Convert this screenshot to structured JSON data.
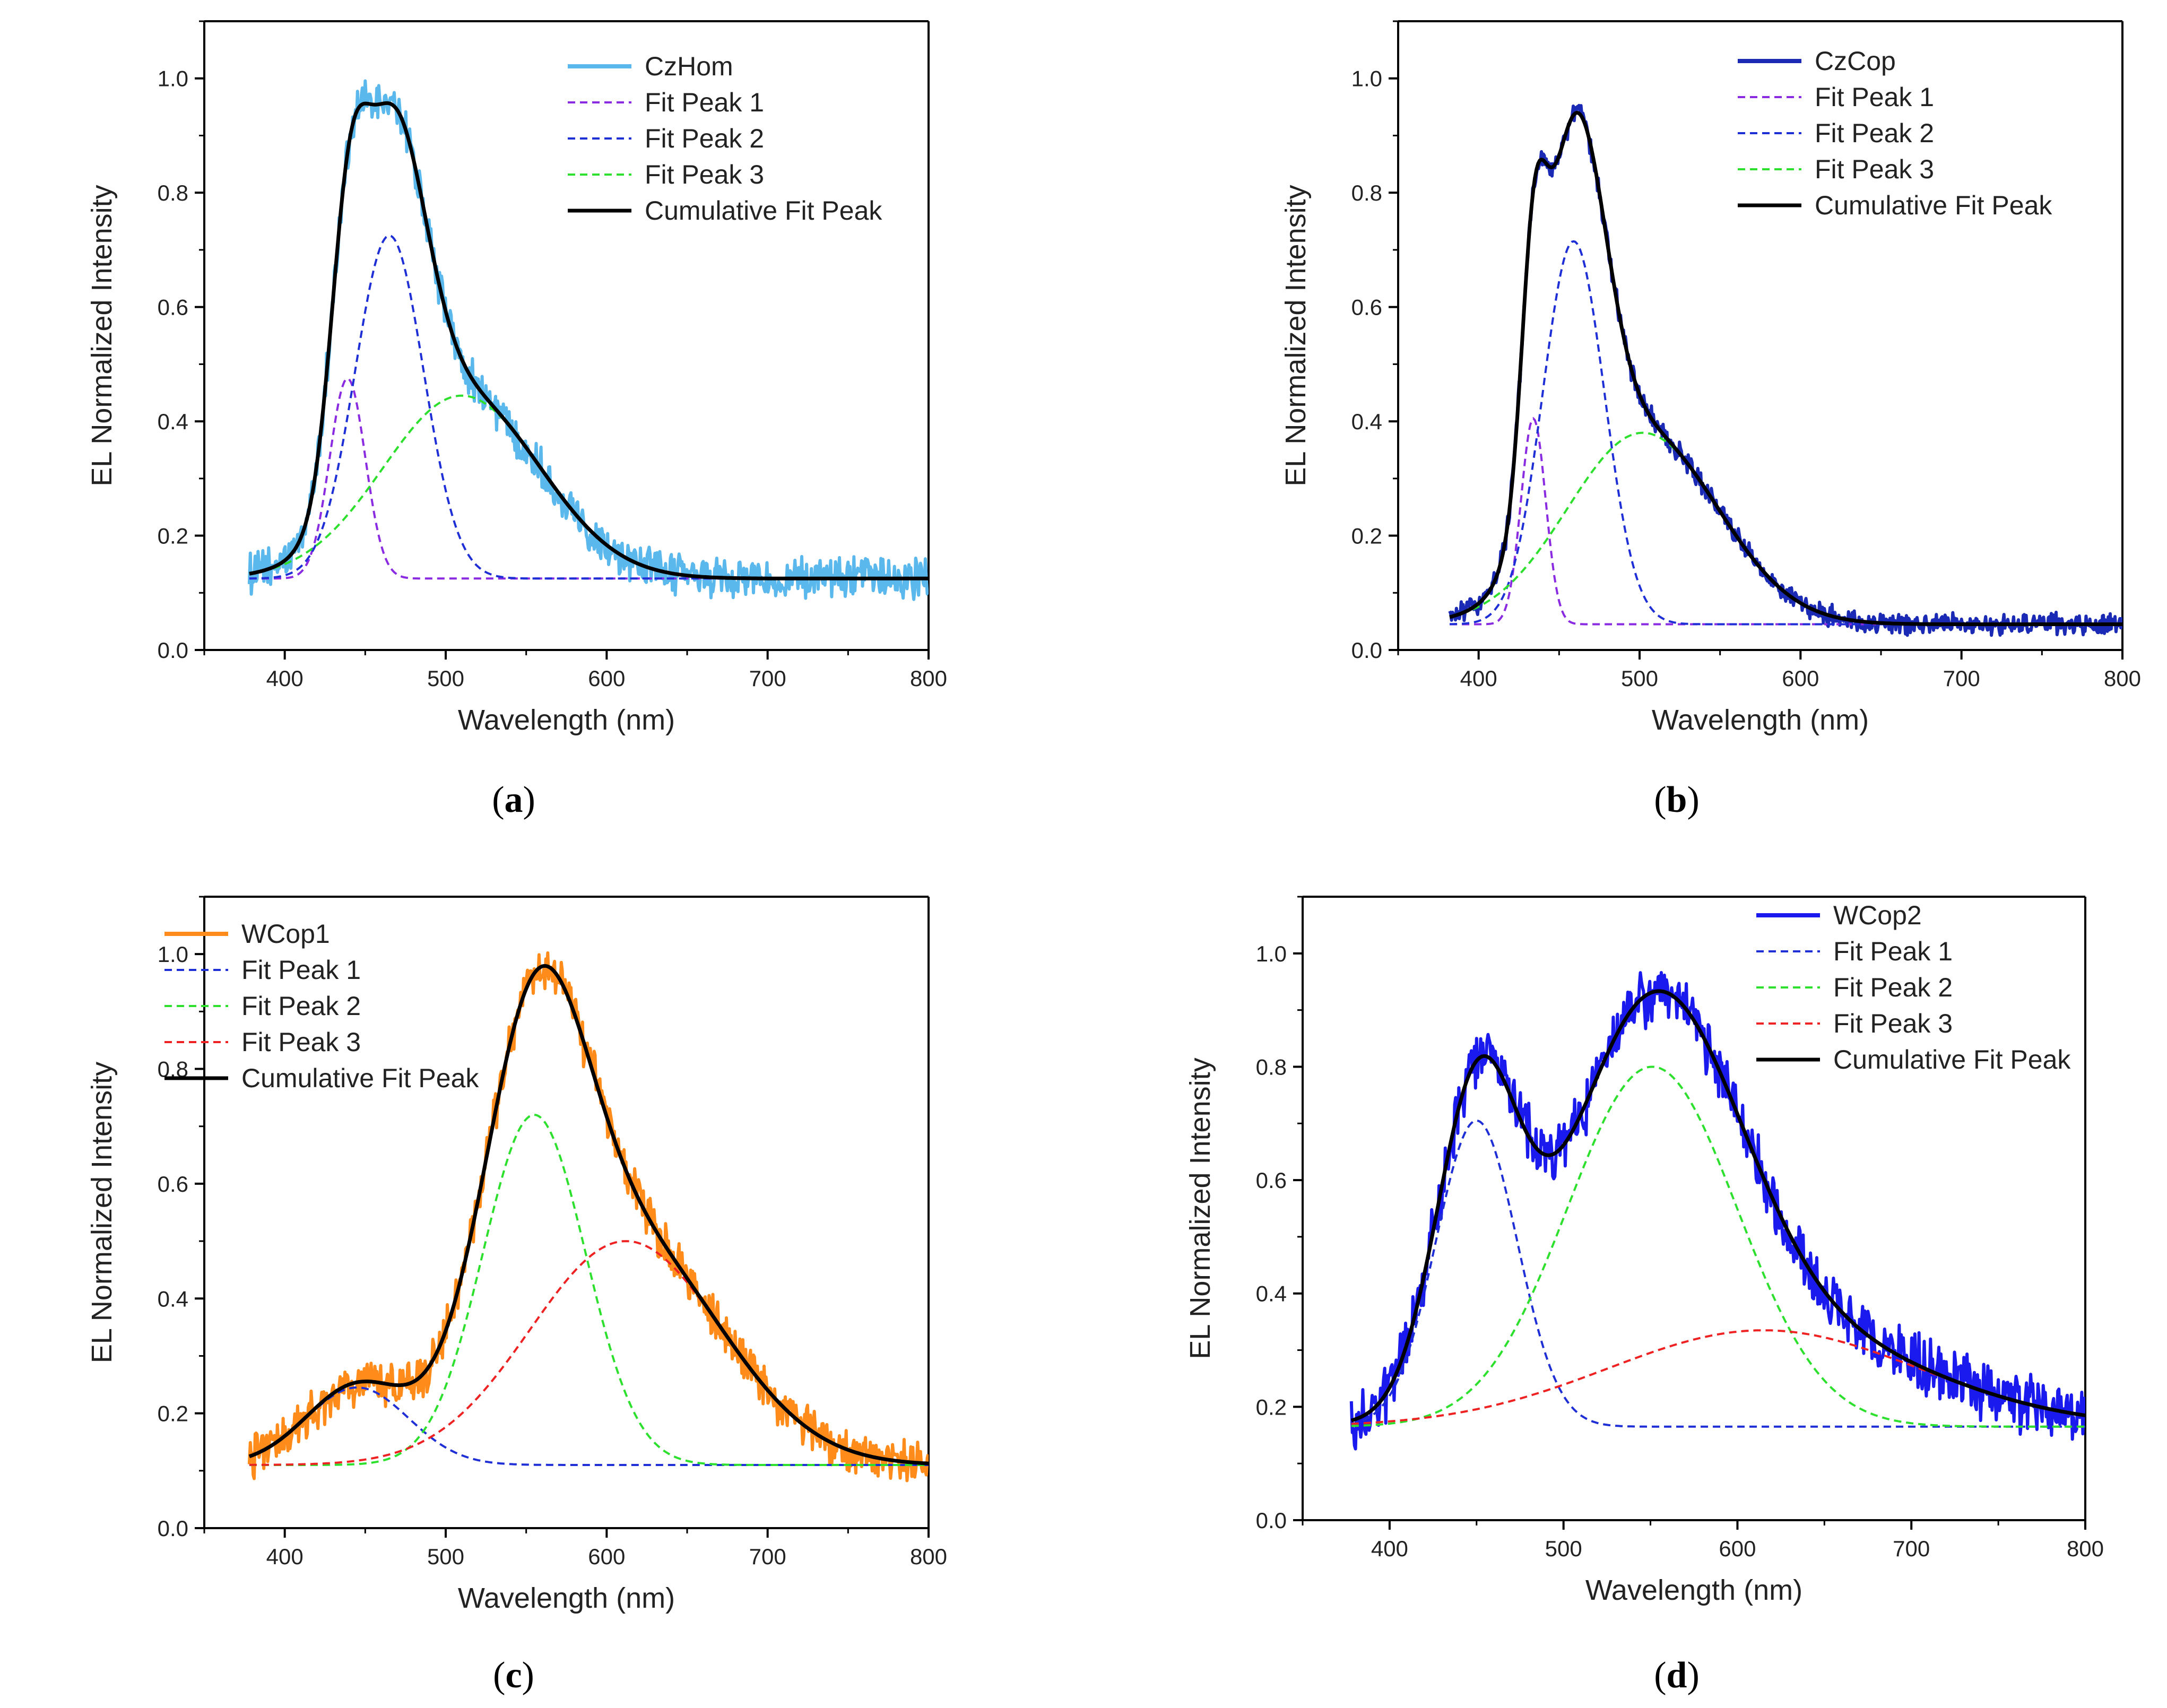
{
  "chart_data": [
    {
      "type": "line",
      "panel": "a",
      "caption_label": "a",
      "xlabel": "Wavelength (nm)",
      "ylabel": "EL Normalized Intensity",
      "xlim": [
        350,
        800
      ],
      "ylim": [
        0,
        1.1
      ],
      "xticks": [
        400,
        500,
        600,
        700,
        800
      ],
      "yticks": [
        0.0,
        0.2,
        0.4,
        0.6,
        0.8,
        1.0
      ],
      "legend_position": "top-right",
      "data_range": [
        378,
        800
      ],
      "noise": 0.028,
      "baseline": 0.125,
      "measured": {
        "name": "CzHom",
        "color": "#5bb8ec"
      },
      "fit_peaks": [
        {
          "name": "Fit Peak 1",
          "color": "#8a2be2",
          "center": 439,
          "fwhm": 26,
          "height": 0.35
        },
        {
          "name": "Fit Peak 2",
          "color": "#1f2fd6",
          "center": 465,
          "fwhm": 50,
          "height": 0.6
        },
        {
          "name": "Fit Peak 3",
          "color": "#2de02d",
          "center": 510,
          "fwhm": 115,
          "height": 0.32
        }
      ],
      "cumulative": {
        "name": "Cumulative Fit Peak",
        "color": "#000000"
      }
    },
    {
      "type": "line",
      "panel": "b",
      "caption_label": "b",
      "xlabel": "Wavelength (nm)",
      "ylabel": "EL Normalized Intensity",
      "xlim": [
        350,
        800
      ],
      "ylim": [
        0,
        1.1
      ],
      "xticks": [
        400,
        500,
        600,
        700,
        800
      ],
      "yticks": [
        0.0,
        0.2,
        0.4,
        0.6,
        0.8,
        1.0
      ],
      "legend_position": "top-right",
      "data_range": [
        382,
        800
      ],
      "noise": 0.015,
      "baseline": 0.045,
      "measured": {
        "name": "CzCop",
        "color": "#1a2ab5"
      },
      "fit_peaks": [
        {
          "name": "Fit Peak 1",
          "color": "#8a2be2",
          "center": 434,
          "fwhm": 18,
          "height": 0.36
        },
        {
          "name": "Fit Peak 2",
          "color": "#1f2fd6",
          "center": 459,
          "fwhm": 45,
          "height": 0.67
        },
        {
          "name": "Fit Peak 3",
          "color": "#2de02d",
          "center": 502,
          "fwhm": 110,
          "height": 0.335
        }
      ],
      "cumulative": {
        "name": "Cumulative Fit Peak",
        "color": "#000000"
      }
    },
    {
      "type": "line",
      "panel": "c",
      "caption_label": "c",
      "xlabel": "Wavelength (nm)",
      "ylabel": "EL Normalized Intensity",
      "xlim": [
        350,
        800
      ],
      "ylim": [
        0,
        1.1
      ],
      "xticks": [
        400,
        500,
        600,
        700,
        800
      ],
      "yticks": [
        0.0,
        0.2,
        0.4,
        0.6,
        0.8,
        1.0
      ],
      "legend_position": "top-left",
      "data_range": [
        378,
        800
      ],
      "noise": 0.03,
      "baseline": 0.11,
      "measured": {
        "name": "WCop1",
        "color": "#ff8c1a"
      },
      "fit_peaks": [
        {
          "name": "Fit Peak 1",
          "color": "#1f2fd6",
          "center": 445,
          "fwhm": 75,
          "height": 0.135
        },
        {
          "name": "Fit Peak 2",
          "color": "#2de02d",
          "center": 555,
          "fwhm": 75,
          "height": 0.61
        },
        {
          "name": "Fit Peak 3",
          "color": "#ee2222",
          "center": 612,
          "fwhm": 140,
          "height": 0.39
        }
      ],
      "cumulative": {
        "name": "Cumulative Fit Peak",
        "color": "#000000"
      }
    },
    {
      "type": "line",
      "panel": "d",
      "caption_label": "d",
      "xlabel": "Wavelength (nm)",
      "ylabel": "EL Normalized Intensity",
      "xlim": [
        350,
        800
      ],
      "ylim": [
        0,
        1.1
      ],
      "xticks": [
        400,
        500,
        600,
        700,
        800
      ],
      "yticks": [
        0.0,
        0.2,
        0.4,
        0.6,
        0.8,
        1.0
      ],
      "legend_position": "top-right",
      "data_range": [
        378,
        800
      ],
      "noise": 0.04,
      "baseline": 0.165,
      "measured": {
        "name": "WCop2",
        "color": "#1a1aee"
      },
      "fit_peaks": [
        {
          "name": "Fit Peak 1",
          "color": "#1f2fd6",
          "center": 450,
          "fwhm": 55,
          "height": 0.54
        },
        {
          "name": "Fit Peak 2",
          "color": "#2de02d",
          "center": 551,
          "fwhm": 115,
          "height": 0.635
        },
        {
          "name": "Fit Peak 3",
          "color": "#ee2222",
          "center": 615,
          "fwhm": 210,
          "height": 0.17
        }
      ],
      "cumulative": {
        "name": "Cumulative Fit Peak",
        "color": "#000000"
      }
    }
  ]
}
